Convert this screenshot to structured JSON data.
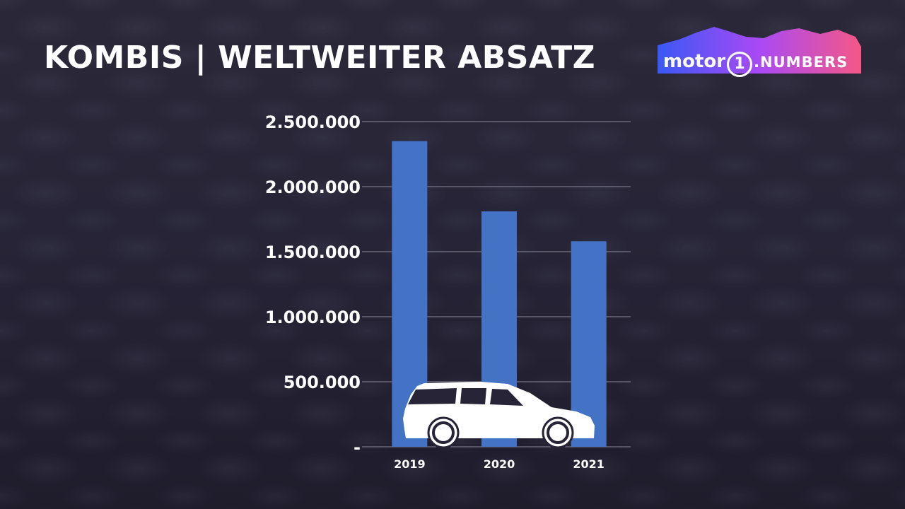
{
  "title": "KOMBIS | WELTWEITER ABSATZ",
  "logo": {
    "part1": "motor",
    "part2": "1",
    "part3": ".NUMBERS"
  },
  "icons": [
    "station-wagon-car-icon"
  ],
  "colors": {
    "bar": "#4472c4",
    "grid": "#8a8a9a",
    "text": "#ffffff"
  },
  "chart_data": {
    "type": "bar",
    "categories": [
      "2019",
      "2020",
      "2021"
    ],
    "values": [
      2350000,
      1810000,
      1580000
    ],
    "ylim": [
      0,
      2500000
    ],
    "ytick_values": [
      0,
      500000,
      1000000,
      1500000,
      2000000,
      2500000
    ],
    "ytick_labels": [
      "-",
      "500.000",
      "1.000.000",
      "1.500.000",
      "2.000.000",
      "2.500.000"
    ],
    "xlabel": "",
    "ylabel": "",
    "grid": true,
    "legend": "none"
  }
}
